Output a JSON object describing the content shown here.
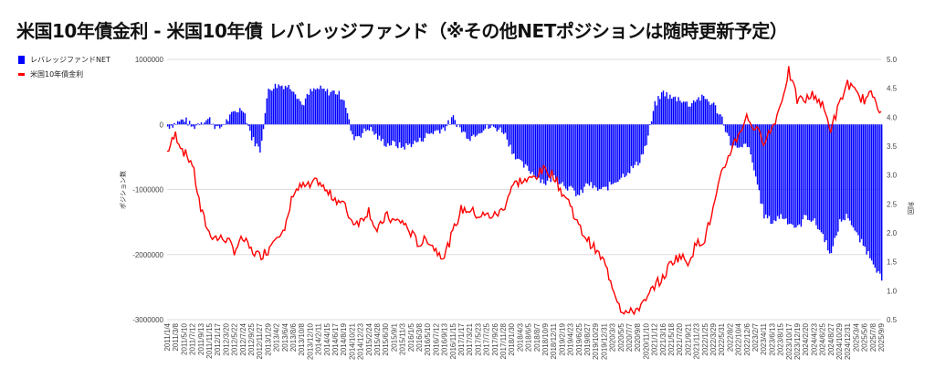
{
  "chart_data": {
    "type": "bar+line",
    "title": "米国10年債金利 - 米国10年債 レバレッジファンド（※その他NETポジションは随時更新予定）",
    "ylabel_left": "ポジション数",
    "ylabel_right": "利回",
    "ylim_left": [
      -3000000,
      1000000
    ],
    "ylim_right": [
      0.5,
      5.0
    ],
    "left_ticks": [
      "1000000",
      "0",
      "-1000000",
      "-2000000",
      "-3000000"
    ],
    "right_ticks": [
      "5.0",
      "4.5",
      "4.0",
      "3.5",
      "3.0",
      "2.5",
      "2.0",
      "1.5",
      "1.0",
      "0.5"
    ],
    "legend": {
      "placement": "top-left"
    },
    "colors": {
      "net": "#0000ff",
      "yield": "#ff0000"
    },
    "categories": [
      "2011/1/4",
      "2011/3/8",
      "2011/5/10",
      "2011/7/12",
      "2011/9/13",
      "2011/11/15",
      "2012/1/17",
      "2012/3/20",
      "2012/5/22",
      "2012/7/24",
      "2012/9/25",
      "2012/11/27",
      "2013/1/29",
      "2013/4/2",
      "2013/6/4",
      "2013/8/6",
      "2013/10/8",
      "2013/12/10",
      "2014/2/11",
      "2014/4/15",
      "2014/6/17",
      "2014/8/19",
      "2014/10/21",
      "2014/12/23",
      "2015/2/24",
      "2015/4/28",
      "2015/6/30",
      "2015/9/1",
      "2015/11/3",
      "2016/1/5",
      "2016/3/8",
      "2016/5/10",
      "2016/7/12",
      "2016/9/13",
      "2016/11/15",
      "2017/1/17",
      "2017/3/21",
      "2017/5/23",
      "2017/7/25",
      "2017/9/26",
      "2017/11/28",
      "2018/1/30",
      "2018/4/3",
      "2018/6/5",
      "2018/8/7",
      "2018/10/9",
      "2018/12/11",
      "2019/2/19",
      "2019/4/23",
      "2019/6/25",
      "2019/8/27",
      "2019/10/29",
      "2019/12/31",
      "2020/3/3",
      "2020/5/5",
      "2020/7/7",
      "2020/9/8",
      "2020/11/10",
      "2021/1/12",
      "2021/3/16",
      "2021/5/18",
      "2021/7/20",
      "2021/9/21",
      "2021/11/23",
      "2022/1/25",
      "2022/3/29",
      "2022/5/31",
      "2022/8/2",
      "2022/10/4",
      "2022/12/6",
      "2023/2/7",
      "2023/4/11",
      "2023/6/13",
      "2023/8/15",
      "2023/10/17",
      "2023/12/19",
      "2024/2/20",
      "2024/4/23",
      "2024/6/25",
      "2024/8/27",
      "2024/10/29",
      "2024/12/31",
      "2025/3/4",
      "2025/5/6",
      "2025/7/8",
      "2025/9/9"
    ],
    "series": [
      {
        "name": "レバレッジファンドNET",
        "type": "bar",
        "axis": "left",
        "values": [
          -30000,
          20000,
          80000,
          -50000,
          50000,
          80000,
          -80000,
          50000,
          200000,
          250000,
          -200000,
          -400000,
          550000,
          600000,
          600000,
          550000,
          300000,
          500000,
          550000,
          500000,
          500000,
          400000,
          -200000,
          -150000,
          -50000,
          -200000,
          -300000,
          -300000,
          -350000,
          -300000,
          -250000,
          -150000,
          -100000,
          -50000,
          100000,
          -100000,
          -200000,
          -100000,
          -50000,
          -50000,
          -100000,
          -400000,
          -600000,
          -700000,
          -800000,
          -900000,
          -800000,
          -900000,
          -1000000,
          -1100000,
          -900000,
          -1000000,
          -1000000,
          -900000,
          -800000,
          -700000,
          -600000,
          -300000,
          300000,
          500000,
          400000,
          400000,
          300000,
          400000,
          400000,
          300000,
          100000,
          -300000,
          -400000,
          -300000,
          -800000,
          -1400000,
          -1500000,
          -1400000,
          -1500000,
          -1600000,
          -1400000,
          -1500000,
          -1700000,
          -2000000,
          -1500000,
          -1400000,
          -1700000,
          -1900000,
          -2100000,
          -2400000
        ]
      },
      {
        "name": "米国10年債金利",
        "type": "line",
        "axis": "right",
        "values": [
          3.4,
          3.7,
          3.4,
          3.2,
          2.4,
          2.0,
          1.9,
          1.9,
          1.7,
          1.9,
          1.7,
          1.6,
          1.7,
          2.0,
          2.0,
          2.7,
          2.8,
          2.8,
          2.9,
          2.7,
          2.6,
          2.5,
          2.2,
          2.2,
          2.4,
          2.0,
          2.3,
          2.2,
          2.2,
          2.0,
          1.8,
          1.9,
          1.7,
          1.6,
          2.0,
          2.4,
          2.4,
          2.3,
          2.3,
          2.3,
          2.4,
          2.8,
          2.9,
          2.9,
          3.0,
          3.1,
          3.0,
          2.7,
          2.5,
          2.1,
          1.9,
          1.7,
          1.5,
          1.1,
          0.7,
          0.6,
          0.7,
          0.8,
          1.1,
          1.2,
          1.5,
          1.6,
          1.5,
          1.8,
          1.9,
          2.4,
          3.0,
          3.4,
          3.7,
          4.0,
          3.8,
          3.6,
          3.8,
          4.2,
          4.8,
          4.3,
          4.3,
          4.4,
          4.2,
          3.8,
          4.2,
          4.6,
          4.4,
          4.3,
          4.4,
          4.1
        ]
      }
    ]
  }
}
